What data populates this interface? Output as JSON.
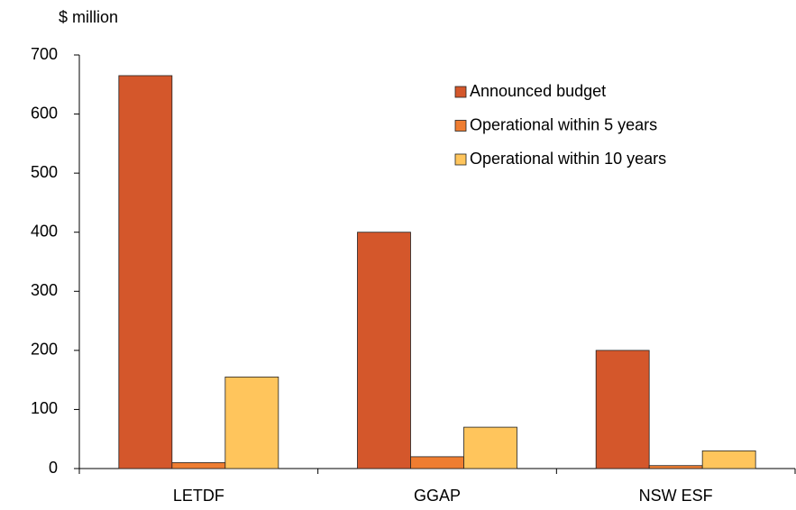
{
  "chart_data": {
    "type": "bar",
    "y_label": "$ million",
    "categories": [
      "LETDF",
      "GGAP",
      "NSW ESF"
    ],
    "series": [
      {
        "name": "Announced budget",
        "color": "#d4572b",
        "values": [
          665,
          400,
          200
        ]
      },
      {
        "name": "Operational within 5 years",
        "color": "#ef7d31",
        "values": [
          10,
          20,
          5
        ]
      },
      {
        "name": "Operational within 10 years",
        "color": "#ffc55c",
        "values": [
          155,
          70,
          30
        ]
      }
    ],
    "ylim": [
      0,
      700
    ],
    "yticks": [
      0,
      100,
      200,
      300,
      400,
      500,
      600,
      700
    ],
    "grid": false,
    "legend": "upper right"
  }
}
